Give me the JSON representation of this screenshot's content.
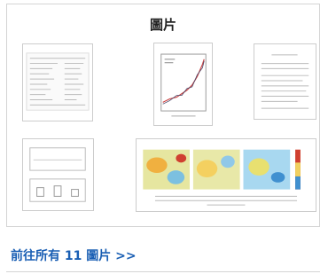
{
  "header": {
    "title": "圖片"
  },
  "footer": {
    "link": "前往所有 11 圖片 >>"
  }
}
